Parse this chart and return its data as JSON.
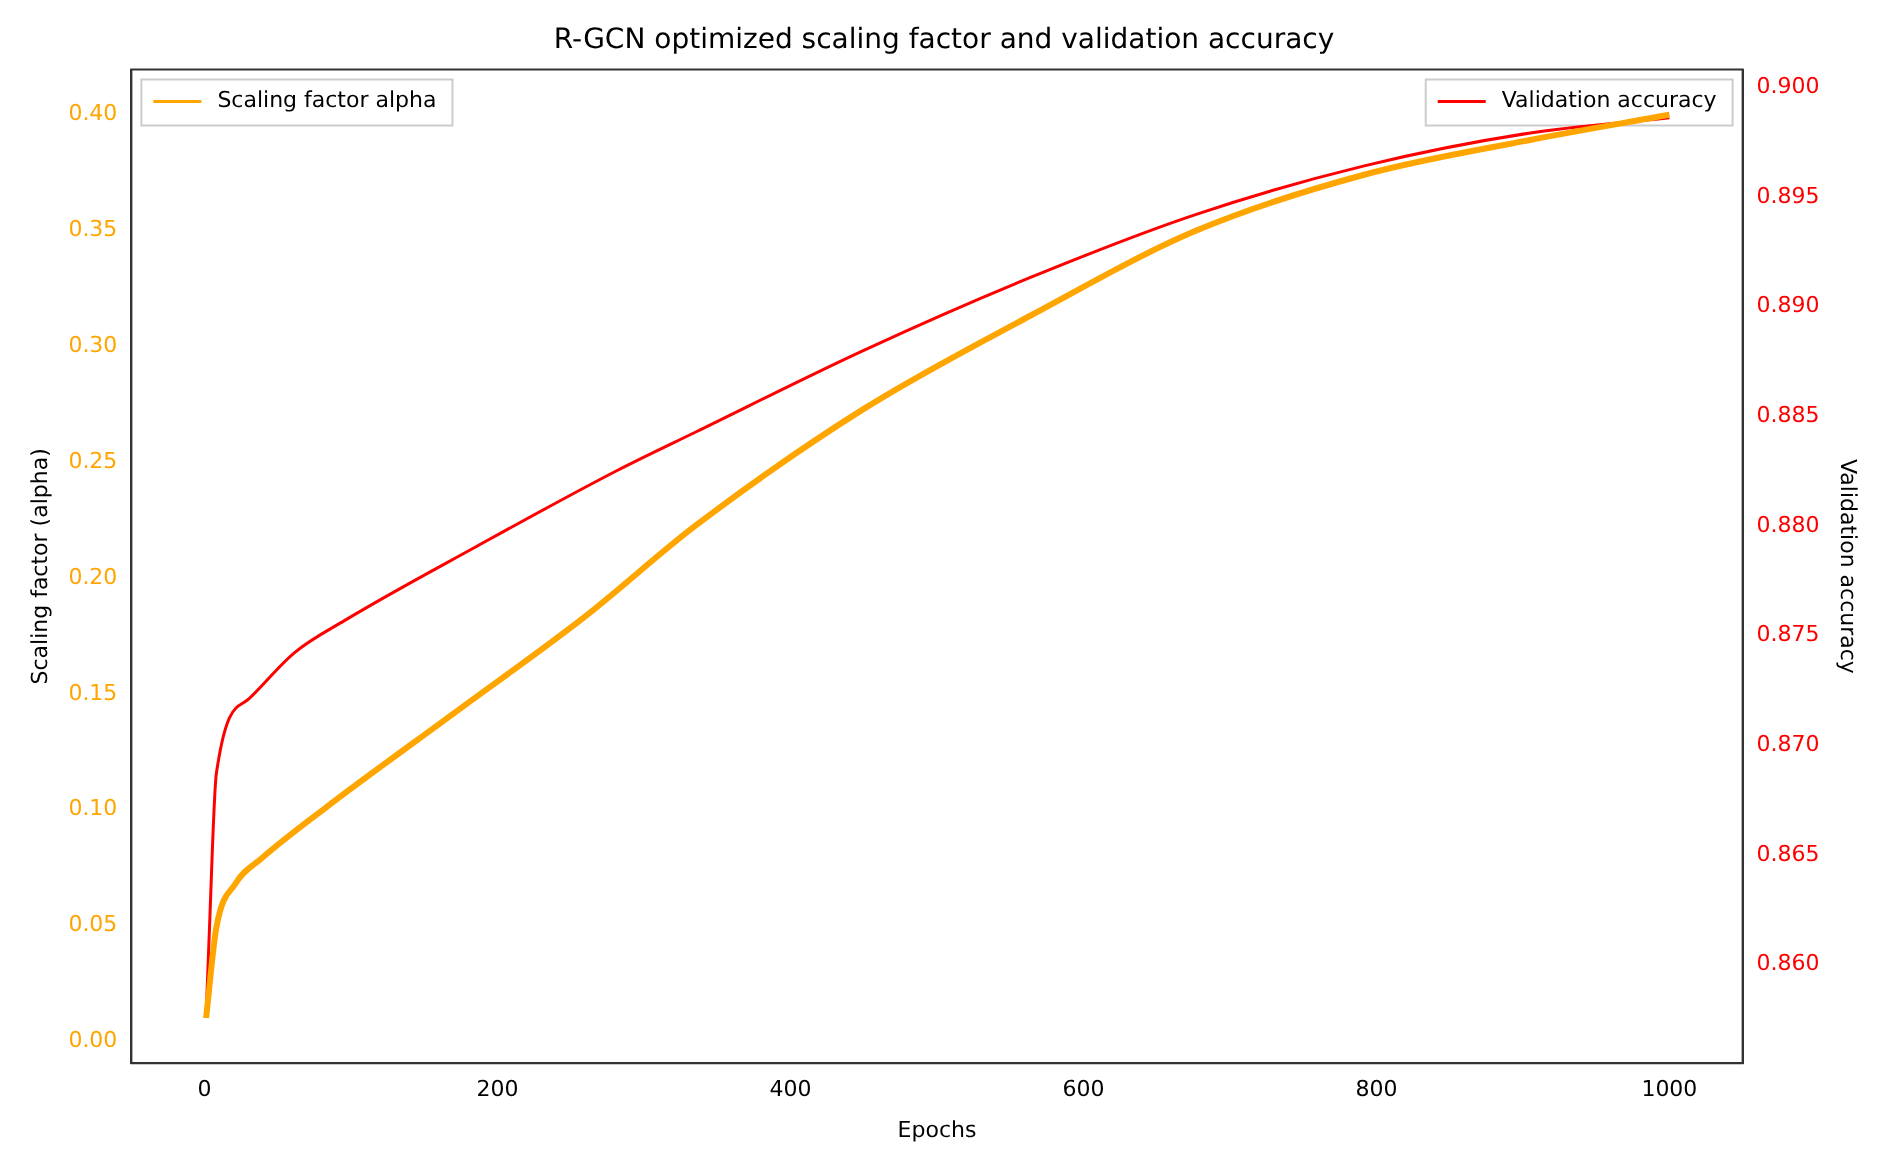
{
  "chart_data": {
    "type": "line",
    "title": "R-GCN optimized scaling factor and validation accuracy",
    "xlabel": "Epochs",
    "ylabel": "Scaling factor (alpha)",
    "y2label": "Validation accuracy",
    "series": [
      {
        "name": "Scaling factor alpha",
        "color": "#ffa500",
        "axis": "y",
        "x": [
          1,
          8,
          21,
          39,
          83,
          171,
          259,
          336,
          450,
          563,
          677,
          791,
          904,
          1000
        ],
        "values": [
          0.01,
          0.049,
          0.068,
          0.079,
          0.101,
          0.142,
          0.183,
          0.223,
          0.273,
          0.313,
          0.35,
          0.374,
          0.389,
          0.4
        ]
      },
      {
        "name": "Validation accuracy",
        "color": "#ff0000",
        "axis": "y2",
        "x": [
          1,
          3,
          8,
          30,
          61,
          96,
          184,
          281,
          336,
          450,
          563,
          677,
          791,
          904,
          1000
        ],
        "values": [
          0.8576,
          0.8611,
          0.8687,
          0.8721,
          0.8742,
          0.8757,
          0.879,
          0.8825,
          0.8843,
          0.888,
          0.8913,
          0.8942,
          0.8964,
          0.8979,
          0.8986
        ]
      }
    ],
    "xlim": [
      -50,
      1050
    ],
    "xticks": [
      0,
      200,
      400,
      600,
      800,
      1000
    ],
    "ylim": [
      -0.0095,
      0.4195
    ],
    "yticks": [
      {
        "value": 0,
        "label": "0.00"
      },
      {
        "value": 0.05,
        "label": "0.05"
      },
      {
        "value": 0.1,
        "label": "0.10"
      },
      {
        "value": 0.15,
        "label": "0.15"
      },
      {
        "value": 0.2,
        "label": "0.20"
      },
      {
        "value": 0.25,
        "label": "0.25"
      },
      {
        "value": 0.3,
        "label": "0.30"
      },
      {
        "value": 0.35,
        "label": "0.35"
      },
      {
        "value": 0.4,
        "label": "0.40"
      }
    ],
    "y2lim": [
      0.8555,
      0.9008
    ],
    "y2ticks": [
      {
        "value": 0.86,
        "label": "0.860"
      },
      {
        "value": 0.865,
        "label": "0.865"
      },
      {
        "value": 0.87,
        "label": "0.870"
      },
      {
        "value": 0.875,
        "label": "0.875"
      },
      {
        "value": 0.88,
        "label": "0.880"
      },
      {
        "value": 0.885,
        "label": "0.885"
      },
      {
        "value": 0.89,
        "label": "0.890"
      },
      {
        "value": 0.895,
        "label": "0.895"
      },
      {
        "value": 0.9,
        "label": "0.900"
      }
    ],
    "legend": "top left",
    "grid": false,
    "marker": "none",
    "line_style": "solid"
  }
}
